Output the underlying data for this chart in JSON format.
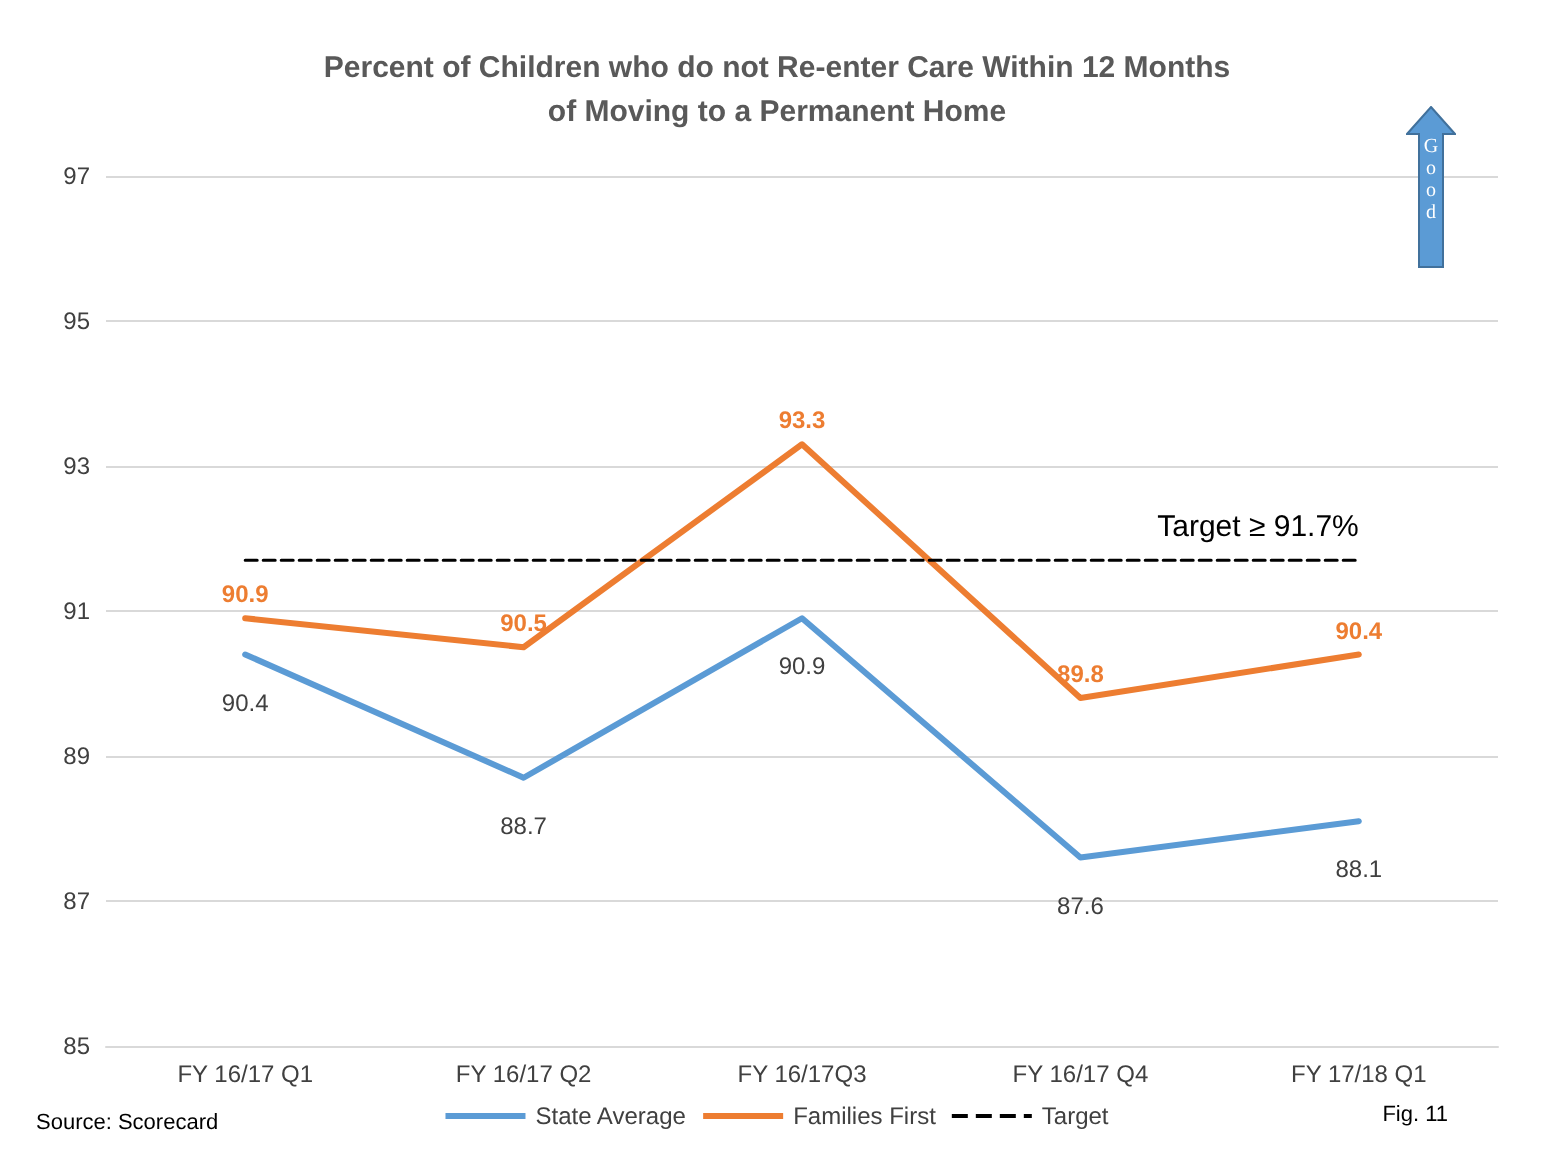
{
  "chart_data": {
    "type": "line",
    "title": "Percent of Children who do not Re-enter Care Within 12 Months\nof Moving to a Permanent Home",
    "categories": [
      "FY 16/17 Q1",
      "FY 16/17 Q2",
      "FY 16/17Q3",
      "FY 16/17 Q4",
      "FY 17/18 Q1"
    ],
    "series": [
      {
        "name": "State Average",
        "color": "#5b9bd5",
        "values": [
          90.4,
          88.7,
          90.9,
          87.6,
          88.1
        ],
        "value_labels": [
          "90.4",
          "88.7",
          "90.9",
          "87.6",
          "88.1"
        ]
      },
      {
        "name": "Families First",
        "color": "#ed7d31",
        "values": [
          90.9,
          90.5,
          93.3,
          89.8,
          90.4
        ],
        "value_labels": [
          "90.9",
          "90.5",
          "93.3",
          "89.8",
          "90.4"
        ]
      },
      {
        "name": "Target",
        "color": "#000000",
        "values": [
          91.7,
          91.7,
          91.7,
          91.7,
          91.7
        ],
        "line_style": "dashed"
      }
    ],
    "ylim": [
      85,
      97
    ],
    "yticks": [
      85,
      87,
      89,
      91,
      93,
      95,
      97
    ],
    "grid": "y",
    "legend": "bottom",
    "marker": "none",
    "annotations": [
      {
        "text": "Target ≥ 91.7%",
        "x": "FY 17/18 Q1",
        "y": 91.7
      },
      "Good",
      "Source: Scorecard",
      "Fig. 11"
    ]
  }
}
